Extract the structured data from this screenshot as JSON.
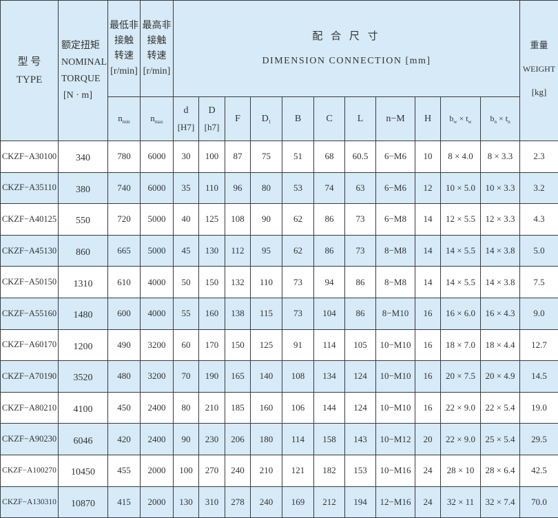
{
  "header": {
    "type": {
      "zh": "型 号",
      "en": "TYPE"
    },
    "torque": {
      "zh": "额定扭矩",
      "en1": "NOMINAL",
      "en2": "TORQUE",
      "unit": "[N · m]"
    },
    "min_speed": {
      "l1": "最低非",
      "l2": "接触",
      "l3": "转速",
      "unit": "[r/min]",
      "sym": "n",
      "sub": "min"
    },
    "max_speed": {
      "l1": "最高非",
      "l2": "接触",
      "l3": "转速",
      "unit": "[r/min]",
      "sym": "n",
      "sub": "max"
    },
    "dimension": {
      "zh": "配 合 尺 寸",
      "en": "DIMENSION  CONNECTION  [mm]"
    },
    "weight": {
      "zh": "重量",
      "en": "WEIGHT",
      "unit": "[kg]"
    },
    "dims": [
      {
        "main": "d",
        "tol": "[H7]"
      },
      {
        "main": "D",
        "tol": "[h7]"
      },
      {
        "main": "F"
      },
      {
        "main": "D",
        "sub": "1"
      },
      {
        "main": "B"
      },
      {
        "main": "C"
      },
      {
        "main": "L"
      },
      {
        "main": "n−M"
      },
      {
        "main": "H"
      },
      {
        "main": "b",
        "sub": "w",
        "mid": " × t",
        "sub2": "w"
      },
      {
        "main": "b",
        "sub": "n",
        "mid": " × t",
        "sub2": "n"
      }
    ]
  },
  "rows": [
    [
      "CKZF−A30100",
      "340",
      "780",
      "6000",
      "30",
      "100",
      "87",
      "75",
      "51",
      "68",
      "60.5",
      "6−M6",
      "10",
      "8 × 4.0",
      "8 × 3.3",
      "2.3"
    ],
    [
      "CKZF−A35110",
      "380",
      "740",
      "6000",
      "35",
      "110",
      "96",
      "80",
      "53",
      "74",
      "63",
      "6−M6",
      "12",
      "10 × 5.0",
      "10 × 3.3",
      "3.2"
    ],
    [
      "CKZF−A40125",
      "550",
      "720",
      "5000",
      "40",
      "125",
      "108",
      "90",
      "62",
      "86",
      "73",
      "6−M8",
      "14",
      "12 × 5.5",
      "12 × 3.3",
      "4.3"
    ],
    [
      "CKZF−A45130",
      "860",
      "665",
      "5000",
      "45",
      "130",
      "112",
      "95",
      "62",
      "86",
      "73",
      "8−M8",
      "14",
      "14 × 5.5",
      "14 × 3.8",
      "5.0"
    ],
    [
      "CKZF−A50150",
      "1310",
      "610",
      "4000",
      "50",
      "150",
      "132",
      "110",
      "73",
      "94",
      "86",
      "8−M8",
      "14",
      "14 × 5.5",
      "14 × 3.8",
      "7.5"
    ],
    [
      "CKZF−A55160",
      "1480",
      "600",
      "4000",
      "55",
      "160",
      "138",
      "115",
      "73",
      "104",
      "86",
      "8−M10",
      "16",
      "16 × 6.0",
      "16 × 4.3",
      "9.0"
    ],
    [
      "CKZF−A60170",
      "1200",
      "490",
      "3200",
      "60",
      "170",
      "150",
      "125",
      "91",
      "114",
      "105",
      "10−M10",
      "16",
      "18 × 7.0",
      "18 × 4.4",
      "12.7"
    ],
    [
      "CKZF−A70190",
      "3520",
      "480",
      "3200",
      "70",
      "190",
      "165",
      "140",
      "108",
      "134",
      "124",
      "10−M10",
      "16",
      "20 × 7.5",
      "20 × 4.9",
      "14.5"
    ],
    [
      "CKZF−A80210",
      "4100",
      "450",
      "2400",
      "80",
      "210",
      "185",
      "160",
      "106",
      "144",
      "124",
      "10−M10",
      "16",
      "22 × 9.0",
      "22 × 5.4",
      "19.0"
    ],
    [
      "CKZF−A90230",
      "6046",
      "420",
      "2400",
      "90",
      "230",
      "206",
      "180",
      "114",
      "158",
      "143",
      "10−M12",
      "20",
      "22 × 9.0",
      "25 × 5.4",
      "29.5"
    ],
    [
      "CKZF−A100270",
      "10450",
      "455",
      "2000",
      "100",
      "270",
      "240",
      "210",
      "121",
      "182",
      "153",
      "10−M16",
      "24",
      "28 × 10",
      "28 × 6.4",
      "42.5"
    ],
    [
      "CKZF−A130310",
      "10870",
      "415",
      "2000",
      "130",
      "310",
      "278",
      "240",
      "169",
      "212",
      "194",
      "12−M16",
      "24",
      "32 × 11",
      "32 × 7.4",
      "70.0"
    ]
  ],
  "colors": {
    "header_bg": "#d6eaf7",
    "alt_row_bg": "#d6eaf7",
    "border": "#3a3a3a",
    "text": "#333333"
  }
}
